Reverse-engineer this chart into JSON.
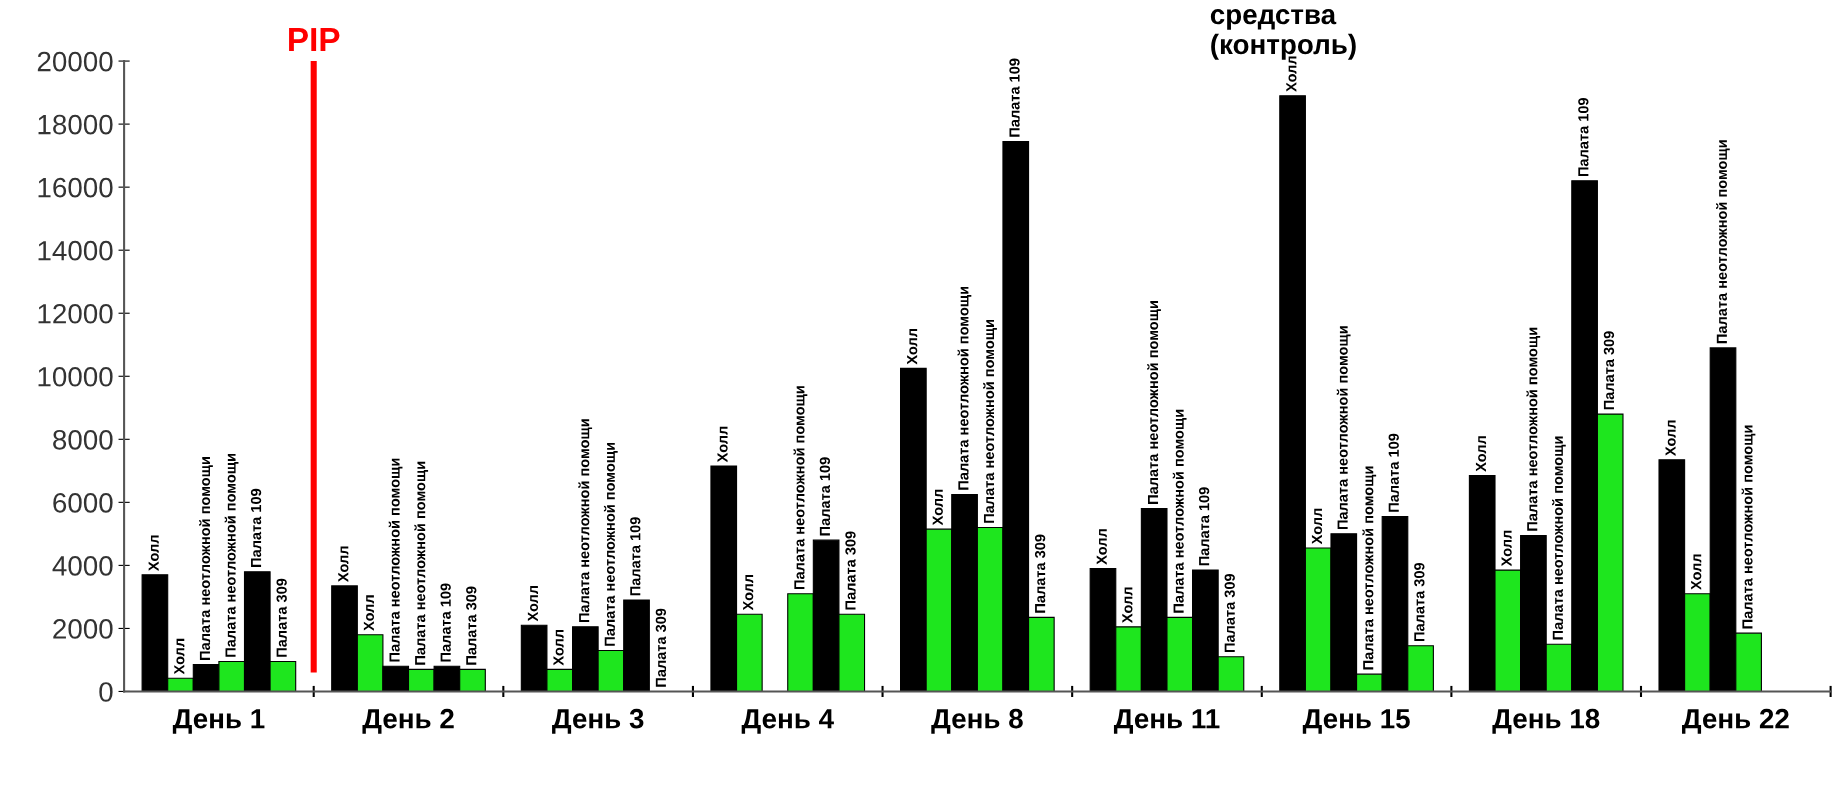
{
  "chart_data": {
    "type": "bar",
    "categories": [
      "День 1",
      "День 2",
      "День 3",
      "День 4",
      "День 8",
      "День 11",
      "День 15",
      "День 18",
      "День 22"
    ],
    "series": [
      {
        "color": "#000000",
        "values": [
          3700,
          3350,
          2100,
          7150,
          10250,
          3900,
          18900,
          6850,
          7350
        ],
        "value_labels": [
          "Холл",
          "Холл",
          "Холл",
          "Холл",
          "Холл",
          "Холл",
          "Холл",
          "Холл",
          "Холл"
        ]
      },
      {
        "color": "#1ee61e",
        "values": [
          420,
          1800,
          700,
          2450,
          5150,
          2050,
          4550,
          3850,
          3100
        ],
        "value_labels": [
          "Холл",
          "Холл",
          "Холл",
          "Холл",
          "Холл",
          "Холл",
          "Холл",
          "Холл",
          "Холл"
        ]
      },
      {
        "color": "#000000",
        "values": [
          850,
          800,
          2050,
          null,
          6250,
          5800,
          5000,
          4950,
          10900
        ],
        "value_labels": [
          "Палата неотложной помощи",
          "Палата неотложной помощи",
          "Палата неотложной помощи",
          null,
          "Палата неотложной помощи",
          "Палата неотложной помощи",
          "Палата неотложной помощи",
          "Палата неотложной помощи",
          "Палата неотложной помощи"
        ]
      },
      {
        "color": "#1ee61e",
        "values": [
          950,
          700,
          1300,
          3100,
          5200,
          2350,
          550,
          1500,
          1850
        ],
        "value_labels": [
          "Палата неотложной помощи",
          "Палата неотложной помощи",
          "Палата неотложной помощи",
          "Палата неотложной помощи",
          "Палата неотложной помощи",
          "Палата неотложной помощи",
          "Палата неотложной помощи",
          "Палата неотложной помощи",
          "Палата неотложной помощи"
        ]
      },
      {
        "color": "#000000",
        "values": [
          3800,
          800,
          2900,
          4800,
          17450,
          3850,
          5550,
          16200,
          null
        ],
        "value_labels": [
          "Палата 109",
          "Палата 109",
          "Палата 109",
          "Палата 109",
          "Палата 109",
          "Палата 109",
          "Палата 109",
          "Палата 109",
          null
        ]
      },
      {
        "color": "#1ee61e",
        "values": [
          950,
          700,
          0,
          2450,
          2350,
          1100,
          1450,
          8800,
          null
        ],
        "value_labels": [
          "Палата 309",
          "Палата 309",
          "Палата 309",
          "Палата 309",
          "Палата 309",
          "Палата 309",
          "Палата 309",
          "Палата 309",
          null
        ]
      }
    ],
    "ylim": [
      0,
      20000
    ],
    "yticks": [
      0,
      2000,
      4000,
      6000,
      8000,
      10000,
      12000,
      14000,
      16000,
      18000,
      20000
    ],
    "annotations": [
      "PIP",
      "средства\n(контроль)"
    ],
    "grid": false,
    "legend": false
  }
}
